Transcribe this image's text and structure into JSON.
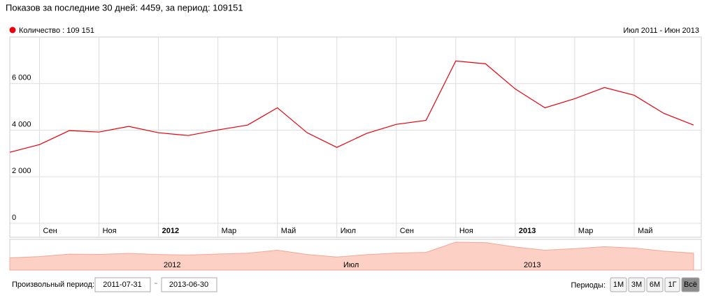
{
  "header": {
    "title": "Показов за последние 30 дней: 4459, за период: 109151"
  },
  "chart_data": {
    "type": "line",
    "range_label": "Июл 2011 - Июн 2013",
    "categories": [
      null,
      "Сен",
      null,
      "Ноя",
      null,
      "2012",
      null,
      "Мар",
      null,
      "Май",
      null,
      "Июл",
      null,
      "Сен",
      null,
      "Ноя",
      null,
      "2013",
      null,
      "Мар",
      null,
      "Май",
      null,
      null
    ],
    "series": [
      {
        "name": "Количество : 109 151",
        "color": "#e8000b",
        "values": [
          3050,
          3380,
          3980,
          3920,
          4160,
          3890,
          3770,
          4010,
          4220,
          4960,
          3890,
          3260,
          3860,
          4250,
          4420,
          6970,
          6850,
          5770,
          4960,
          5350,
          5830,
          5500,
          4720,
          4220
        ]
      }
    ],
    "ylim": [
      0,
      8000
    ],
    "yticks": [
      0,
      {
        "value": 2000,
        "label": "2 000"
      },
      {
        "value": 4000,
        "label": "4 000"
      },
      {
        "value": 6000,
        "label": "6 000"
      }
    ],
    "grid": true
  },
  "navigator": {
    "labels": [
      "2012",
      "Июл",
      "2013"
    ]
  },
  "controls": {
    "custom_period": "Произвольный период:",
    "from": "2011-07-31",
    "to": "2013-06-30",
    "periods": "Периоды:",
    "buttons": [
      "1М",
      "3М",
      "6М",
      "1Г",
      "Всё"
    ]
  }
}
